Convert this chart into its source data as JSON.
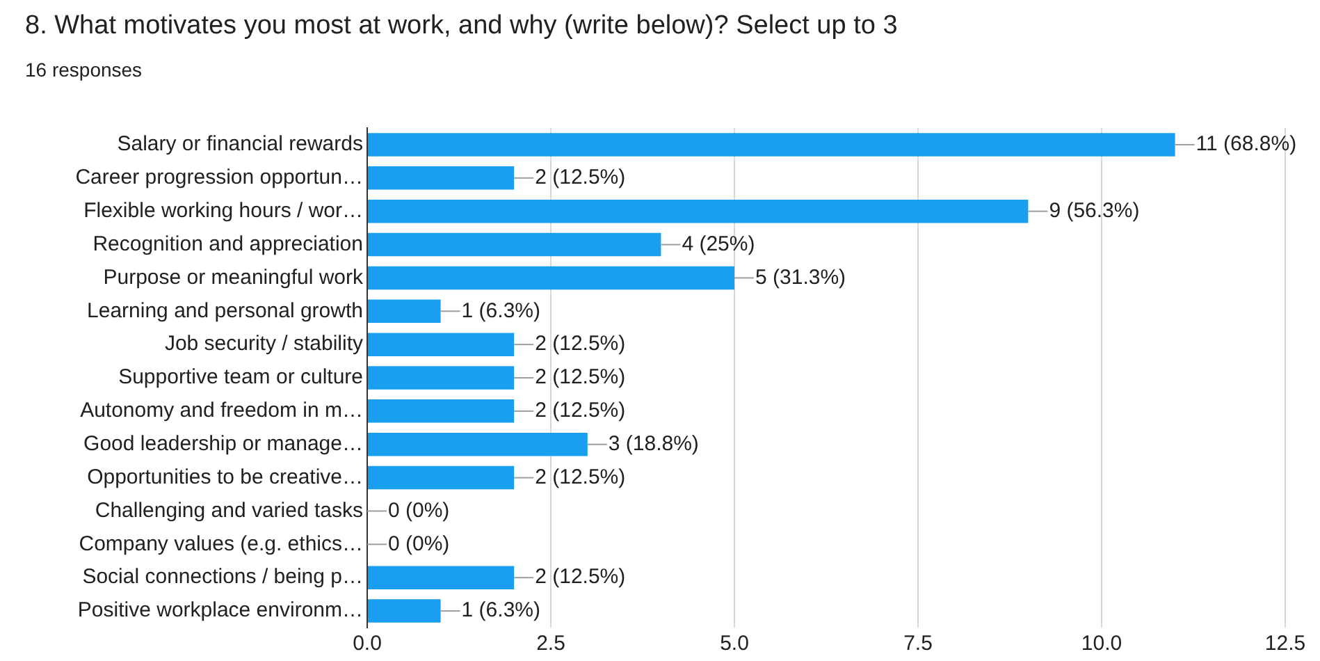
{
  "chart_data": {
    "type": "bar",
    "orientation": "horizontal",
    "title": "8. What motivates you most at work, and why (write below)? Select up to 3",
    "subtitle": "16 responses",
    "categories": [
      "Salary or financial rewards",
      "Career progression opportun…",
      "Flexible working hours / wor…",
      "Recognition and appreciation",
      "Purpose or meaningful work",
      "Learning and personal growth",
      "Job security / stability",
      "Supportive team or culture",
      "Autonomy and freedom in m…",
      "Good leadership or manage…",
      "Opportunities to be creative…",
      "Challenging and varied tasks",
      "Company values (e.g. ethics…",
      "Social connections / being p…",
      "Positive workplace environm…"
    ],
    "values": [
      11,
      2,
      9,
      4,
      5,
      1,
      2,
      2,
      2,
      3,
      2,
      0,
      0,
      2,
      1
    ],
    "value_labels": [
      "11 (68.8%)",
      "2 (12.5%)",
      "9 (56.3%)",
      "4 (25%)",
      "5 (31.3%)",
      "1 (6.3%)",
      "2 (12.5%)",
      "2 (12.5%)",
      "2 (12.5%)",
      "3 (18.8%)",
      "2 (12.5%)",
      "0 (0%)",
      "0 (0%)",
      "2 (12.5%)",
      "1 (6.3%)"
    ],
    "color": "#1a9ff0",
    "xlim": [
      0,
      12.5
    ],
    "xticks": [
      {
        "value": 0,
        "label": "0.0"
      },
      {
        "value": 2.5,
        "label": "2.5"
      },
      {
        "value": 5,
        "label": "5.0"
      },
      {
        "value": 7.5,
        "label": "7.5"
      },
      {
        "value": 10,
        "label": "10.0"
      },
      {
        "value": 12.5,
        "label": "12.5"
      }
    ],
    "grid": "x",
    "legend": false
  }
}
